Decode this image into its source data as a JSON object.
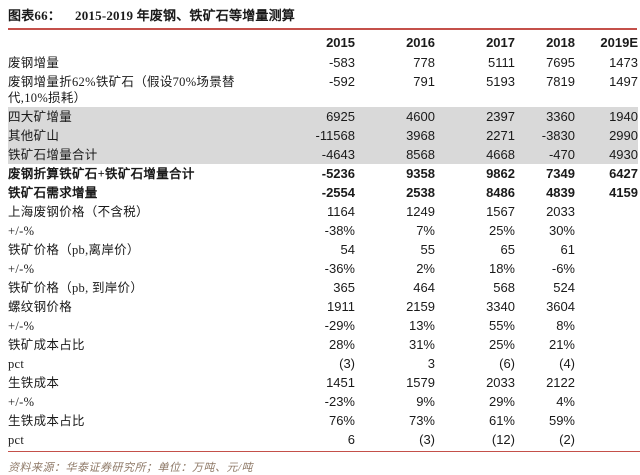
{
  "title": {
    "prefix": "图表66：",
    "text": "2015-2019 年废钢、铁矿石等增量测算"
  },
  "footer": {
    "source": "资料来源：华泰证券研究所；单位：万吨、元/吨"
  },
  "colors": {
    "accent_rule": "#C4504A",
    "row_highlight": "#D9D9D9",
    "source_text": "#8F7A68",
    "text": "#1A1A1A"
  },
  "chart_data": {
    "type": "table",
    "title": "图表66： 2015-2019 年废钢、铁矿石等增量测算",
    "columns": [
      "2015",
      "2016",
      "2017",
      "2018",
      "2019E"
    ],
    "rows": [
      {
        "label": "废钢增量",
        "values": [
          "-583",
          "778",
          "5111",
          "7695",
          "1473"
        ],
        "style": "normal"
      },
      {
        "label": "废钢增量折62%铁矿石（假设70%场景替代,10%损耗）",
        "values": [
          "-592",
          "791",
          "5193",
          "7819",
          "1497"
        ],
        "style": "normal"
      },
      {
        "label": "四大矿增量",
        "values": [
          "6925",
          "4600",
          "2397",
          "3360",
          "1940"
        ],
        "style": "gray"
      },
      {
        "label": "其他矿山",
        "values": [
          "-11568",
          "3968",
          "2271",
          "-3830",
          "2990"
        ],
        "style": "gray"
      },
      {
        "label": "铁矿石增量合计",
        "values": [
          "-4643",
          "8568",
          "4668",
          "-470",
          "4930"
        ],
        "style": "gray"
      },
      {
        "label": "废钢折算铁矿石+铁矿石增量合计",
        "values": [
          "-5236",
          "9358",
          "9862",
          "7349",
          "6427"
        ],
        "style": "bold"
      },
      {
        "label": "铁矿石需求增量",
        "values": [
          "-2554",
          "2538",
          "8486",
          "4839",
          "4159"
        ],
        "style": "bold"
      },
      {
        "label": "上海废钢价格（不含税）",
        "values": [
          "1164",
          "1249",
          "1567",
          "2033",
          ""
        ],
        "style": "normal"
      },
      {
        "label": "+/-%",
        "values": [
          "-38%",
          "7%",
          "25%",
          "30%",
          ""
        ],
        "style": "normal"
      },
      {
        "label": "铁矿价格（pb,离岸价）",
        "values": [
          "54",
          "55",
          "65",
          "61",
          ""
        ],
        "style": "normal"
      },
      {
        "label": "+/-%",
        "values": [
          "-36%",
          "2%",
          "18%",
          "-6%",
          ""
        ],
        "style": "normal"
      },
      {
        "label": "铁矿价格（pb, 到岸价）",
        "values": [
          "365",
          "464",
          "568",
          "524",
          ""
        ],
        "style": "normal"
      },
      {
        "label": "螺纹钢价格",
        "values": [
          "1911",
          "2159",
          "3340",
          "3604",
          ""
        ],
        "style": "normal"
      },
      {
        "label": "+/-%",
        "values": [
          "-29%",
          "13%",
          "55%",
          "8%",
          ""
        ],
        "style": "normal"
      },
      {
        "label": "铁矿成本占比",
        "values": [
          "28%",
          "31%",
          "25%",
          "21%",
          ""
        ],
        "style": "normal"
      },
      {
        "label": "pct",
        "values": [
          "(3)",
          "3",
          "(6)",
          "(4)",
          ""
        ],
        "style": "normal"
      },
      {
        "label": "生铁成本",
        "values": [
          "1451",
          "1579",
          "2033",
          "2122",
          ""
        ],
        "style": "normal"
      },
      {
        "label": "+/-%",
        "values": [
          "-23%",
          "9%",
          "29%",
          "4%",
          ""
        ],
        "style": "normal"
      },
      {
        "label": "生铁成本占比",
        "values": [
          "76%",
          "73%",
          "61%",
          "59%",
          ""
        ],
        "style": "normal"
      },
      {
        "label": "pct",
        "values": [
          "6",
          "(3)",
          "(12)",
          "(2)",
          ""
        ],
        "style": "normal"
      }
    ]
  }
}
